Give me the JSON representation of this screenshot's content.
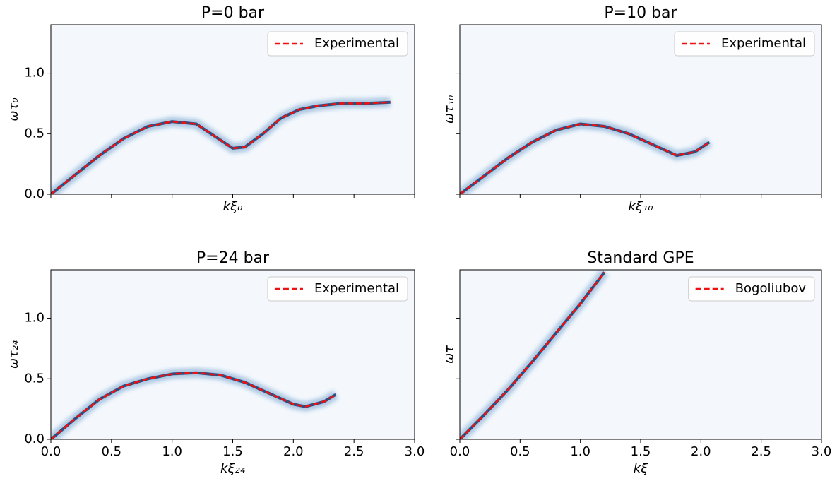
{
  "chart_data": [
    {
      "type": "line",
      "title": "P=0 bar",
      "xlabel": "kξ₀",
      "ylabel": "ωτ₀",
      "x": [
        0,
        0.2,
        0.4,
        0.6,
        0.8,
        1.0,
        1.2,
        1.35,
        1.5,
        1.6,
        1.75,
        1.9,
        2.05,
        2.2,
        2.4,
        2.6,
        2.8
      ],
      "series": [
        {
          "name": "Experimental",
          "color": "#ee1111",
          "values": [
            0,
            0.16,
            0.32,
            0.46,
            0.56,
            0.6,
            0.58,
            0.48,
            0.38,
            0.39,
            0.5,
            0.63,
            0.7,
            0.73,
            0.75,
            0.75,
            0.76
          ]
        }
      ],
      "xlim": [
        0,
        3
      ],
      "ylim": [
        0,
        1.4
      ],
      "xticks": [
        0,
        0.5,
        1,
        1.5,
        2,
        2.5,
        3
      ],
      "yticks": [
        {
          "value": 0,
          "label": "0.0"
        },
        {
          "value": 0.5,
          "label": "0.5"
        },
        {
          "value": 1,
          "label": "1.0"
        }
      ],
      "show_xticklabels": false,
      "show_yticklabels": true,
      "legend": "upper right"
    },
    {
      "type": "line",
      "title": "P=10 bar",
      "xlabel": "kξ₁₀",
      "ylabel": "ωτ₁₀",
      "x": [
        0,
        0.2,
        0.4,
        0.6,
        0.8,
        1.0,
        1.2,
        1.4,
        1.6,
        1.8,
        1.95,
        2.07
      ],
      "series": [
        {
          "name": "Experimental",
          "color": "#ee1111",
          "values": [
            0,
            0.15,
            0.3,
            0.43,
            0.53,
            0.58,
            0.56,
            0.5,
            0.41,
            0.32,
            0.35,
            0.43
          ]
        }
      ],
      "xlim": [
        0,
        3
      ],
      "ylim": [
        0,
        1.4
      ],
      "xticks": [
        0,
        0.5,
        1,
        1.5,
        2,
        2.5,
        3
      ],
      "yticks": [
        0,
        0.5,
        1
      ],
      "show_xticklabels": false,
      "show_yticklabels": false,
      "legend": "upper right"
    },
    {
      "type": "line",
      "title": "P=24 bar",
      "xlabel": "kξ₂₄",
      "ylabel": "ωτ₂₄",
      "x": [
        0,
        0.2,
        0.4,
        0.6,
        0.8,
        1.0,
        1.2,
        1.4,
        1.6,
        1.8,
        2.0,
        2.1,
        2.25,
        2.35
      ],
      "series": [
        {
          "name": "Experimental",
          "color": "#ee1111",
          "values": [
            0,
            0.17,
            0.33,
            0.44,
            0.5,
            0.54,
            0.55,
            0.53,
            0.47,
            0.38,
            0.29,
            0.27,
            0.31,
            0.37
          ]
        }
      ],
      "xlim": [
        0,
        3
      ],
      "ylim": [
        0,
        1.4
      ],
      "xticks": [
        {
          "value": 0,
          "label": "0.0"
        },
        {
          "value": 0.5,
          "label": "0.5"
        },
        {
          "value": 1,
          "label": "1.0"
        },
        {
          "value": 1.5,
          "label": "1.5"
        },
        {
          "value": 2,
          "label": "2.0"
        },
        {
          "value": 2.5,
          "label": "2.5"
        },
        {
          "value": 3,
          "label": "3.0"
        }
      ],
      "yticks": [
        {
          "value": 0,
          "label": "0.0"
        },
        {
          "value": 0.5,
          "label": "0.5"
        },
        {
          "value": 1,
          "label": "1.0"
        }
      ],
      "show_xticklabels": true,
      "show_yticklabels": true,
      "legend": "upper right"
    },
    {
      "type": "line",
      "title": "Standard GPE",
      "xlabel": "kξ",
      "ylabel": "ωτ",
      "x": [
        0,
        0.2,
        0.4,
        0.6,
        0.8,
        1.0,
        1.1,
        1.2
      ],
      "series": [
        {
          "name": "Bogoliubov",
          "color": "#ee1111",
          "values": [
            0,
            0.2,
            0.41,
            0.64,
            0.88,
            1.12,
            1.25,
            1.38
          ]
        }
      ],
      "xlim": [
        0,
        3
      ],
      "ylim": [
        0,
        1.4
      ],
      "xticks": [
        {
          "value": 0,
          "label": "0.0"
        },
        {
          "value": 0.5,
          "label": "0.5"
        },
        {
          "value": 1,
          "label": "1.0"
        },
        {
          "value": 1.5,
          "label": "1.5"
        },
        {
          "value": 2,
          "label": "2.0"
        },
        {
          "value": 2.5,
          "label": "2.5"
        },
        {
          "value": 3,
          "label": "3.0"
        }
      ],
      "yticks": [
        0,
        0.5,
        1
      ],
      "show_xticklabels": true,
      "show_yticklabels": false,
      "legend": "upper right"
    }
  ]
}
